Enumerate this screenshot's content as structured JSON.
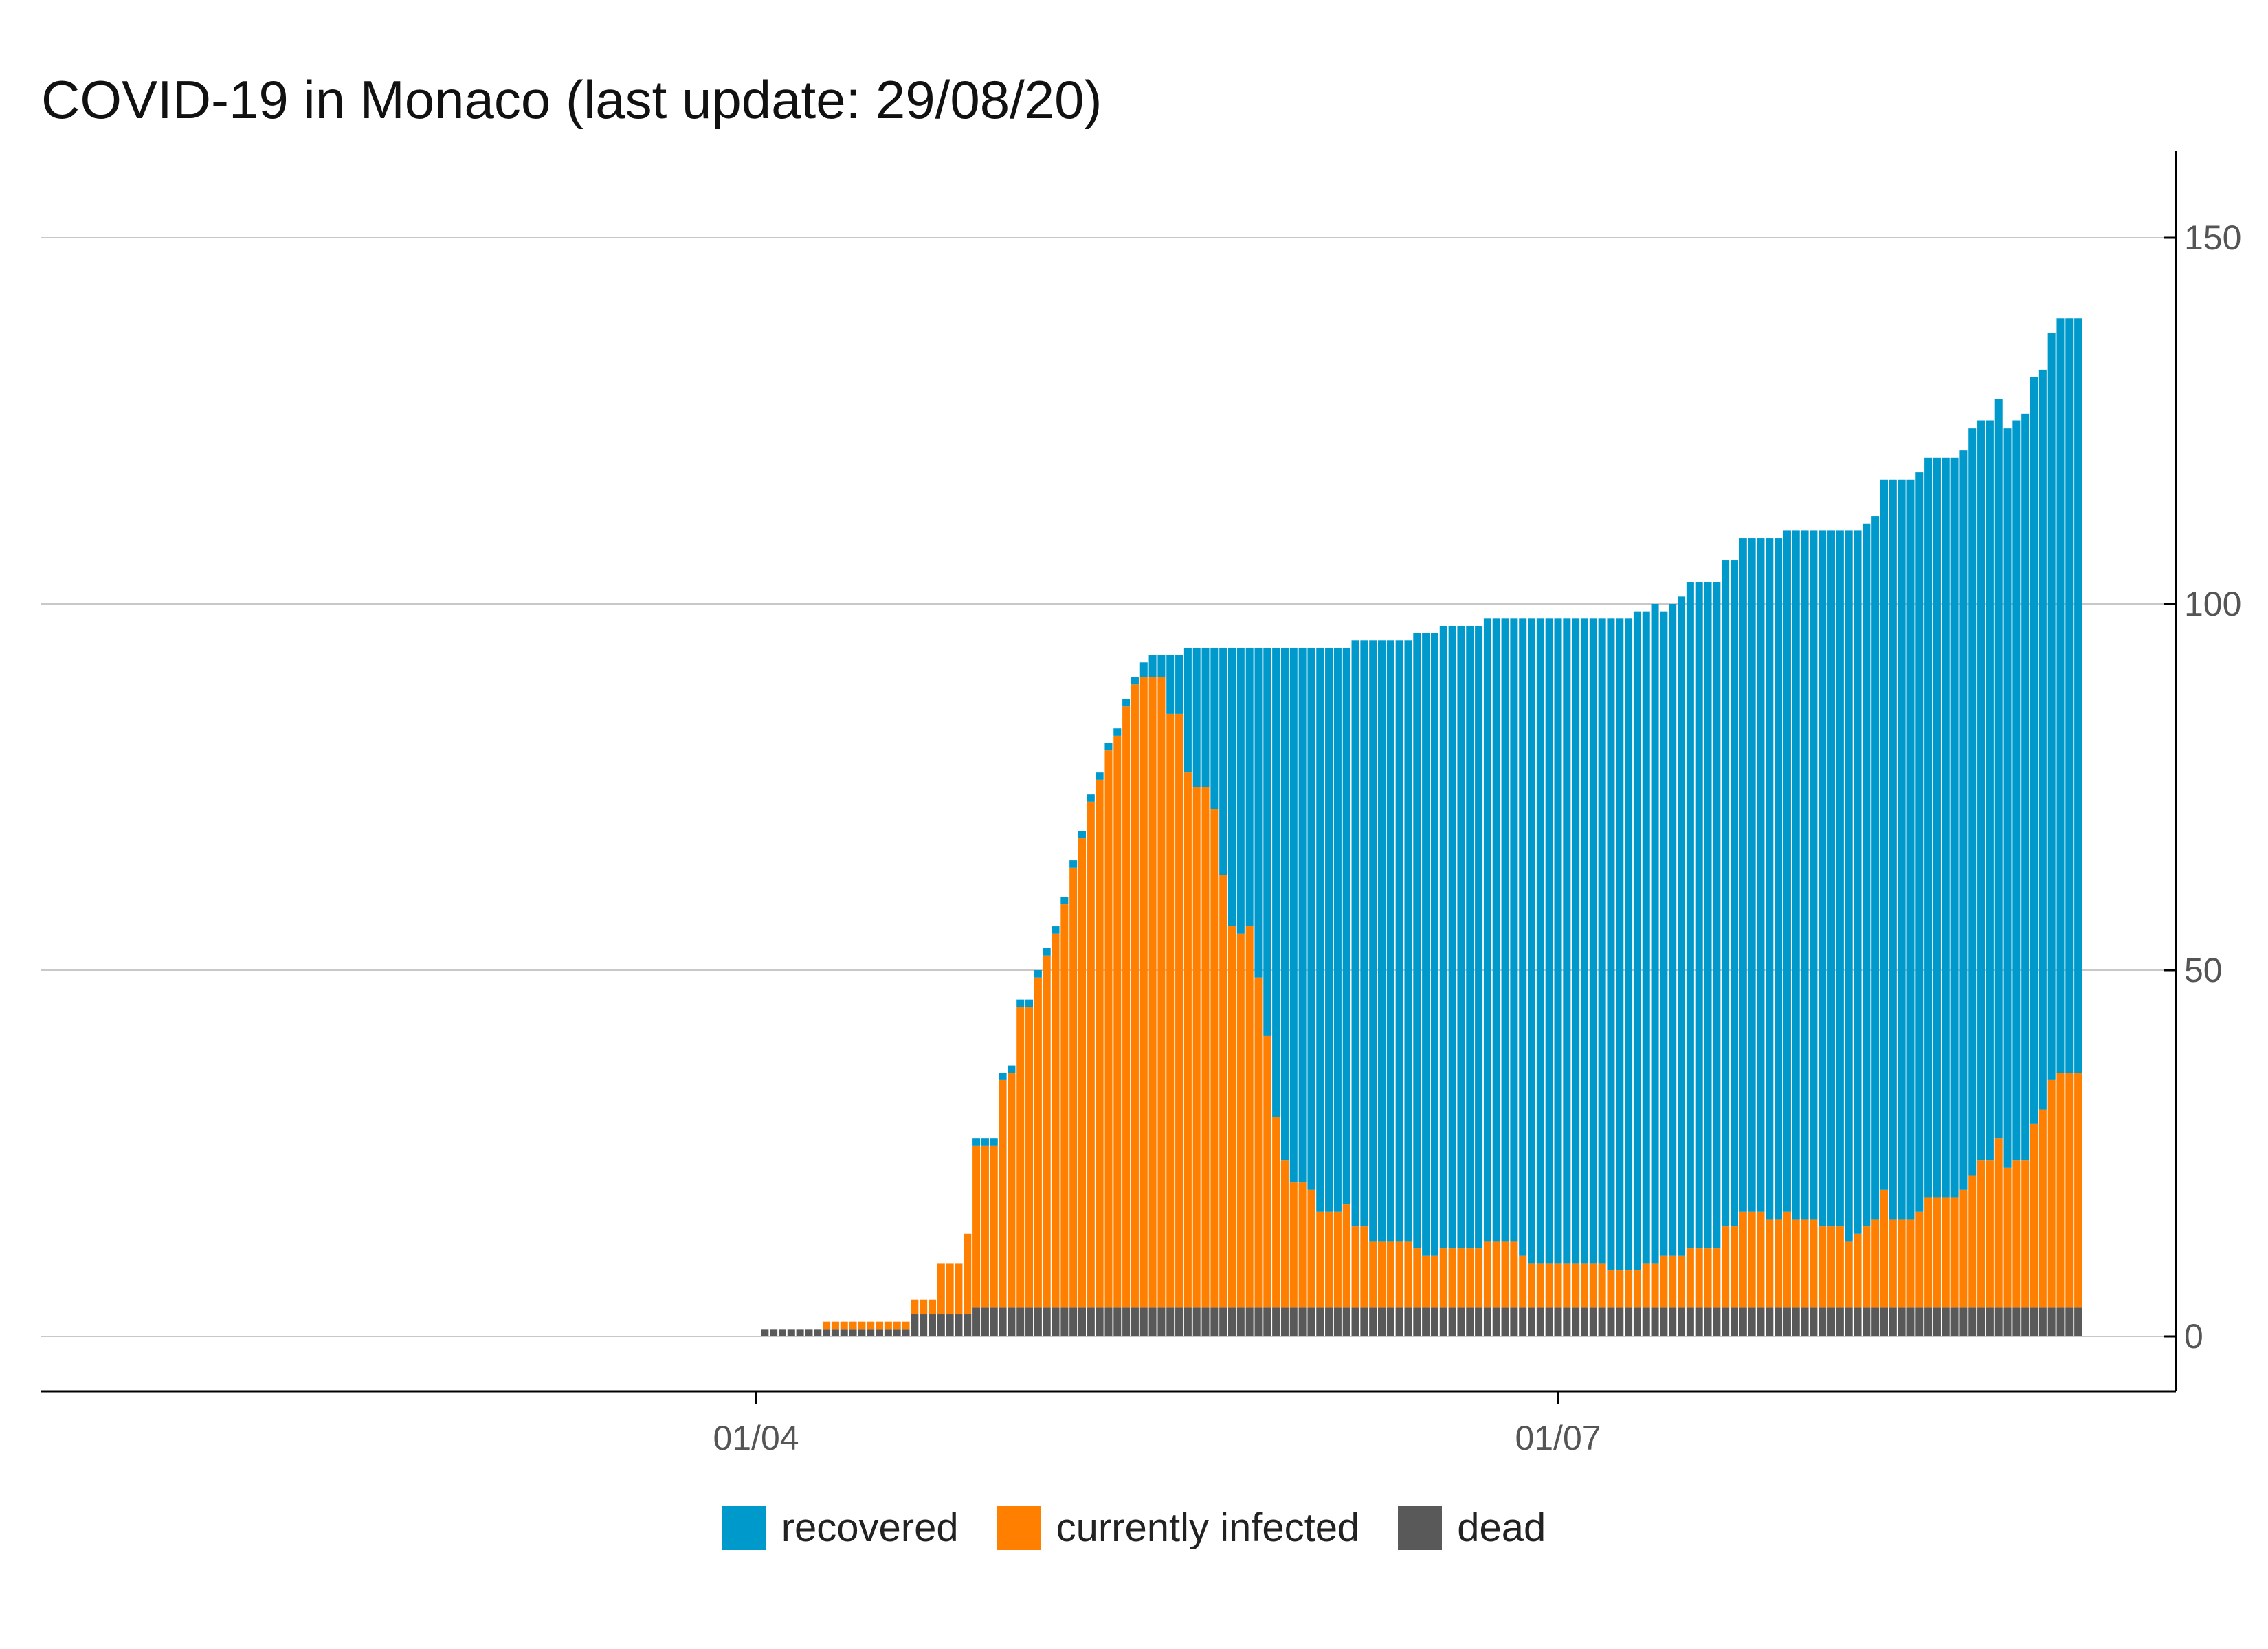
{
  "title": "COVID-19 in Monaco (last update: 29/08/20)",
  "chart_data": {
    "type": "bar",
    "stacked": true,
    "start_date": "2020-02-29",
    "end_date": "2020-08-29",
    "x_ticks": [
      {
        "date": "2020-04-01",
        "label": "01/04"
      },
      {
        "date": "2020-07-01",
        "label": "01/07"
      }
    ],
    "y_ticks": [
      0,
      50,
      100,
      150
    ],
    "ylim": [
      -8,
      162
    ],
    "y_axis_side": "right",
    "grid": "horizontal",
    "legend_position": "bottom",
    "series": [
      {
        "name": "dead",
        "color": "#595959",
        "values": [
          0,
          0,
          0,
          0,
          0,
          0,
          0,
          0,
          0,
          0,
          0,
          0,
          0,
          0,
          0,
          0,
          0,
          0,
          0,
          0,
          0,
          0,
          0,
          0,
          0,
          0,
          0,
          0,
          0,
          0,
          0,
          0,
          0,
          1,
          1,
          1,
          1,
          1,
          1,
          1,
          1,
          1,
          1,
          1,
          1,
          1,
          1,
          1,
          1,
          1,
          3,
          3,
          3,
          3,
          3,
          3,
          3,
          4,
          4,
          4,
          4,
          4,
          4,
          4,
          4,
          4,
          4,
          4,
          4,
          4,
          4,
          4,
          4,
          4,
          4,
          4,
          4,
          4,
          4,
          4,
          4,
          4,
          4,
          4,
          4,
          4,
          4,
          4,
          4,
          4,
          4,
          4,
          4,
          4,
          4,
          4,
          4,
          4,
          4,
          4,
          4,
          4,
          4,
          4,
          4,
          4,
          4,
          4,
          4,
          4,
          4,
          4,
          4,
          4,
          4,
          4,
          4,
          4,
          4,
          4,
          4,
          4,
          4,
          4,
          4,
          4,
          4,
          4,
          4,
          4,
          4,
          4,
          4,
          4,
          4,
          4,
          4,
          4,
          4,
          4,
          4,
          4,
          4,
          4,
          4,
          4,
          4,
          4,
          4,
          4,
          4,
          4,
          4,
          4,
          4,
          4,
          4,
          4,
          4,
          4,
          4,
          4,
          4,
          4,
          4,
          4,
          4,
          4,
          4,
          4,
          4,
          4,
          4,
          4,
          4,
          4,
          4,
          4,
          4,
          4,
          4,
          4,
          4,
          4
        ]
      },
      {
        "name": "currently infected",
        "color": "#ff8000",
        "values": [
          0,
          0,
          0,
          0,
          0,
          0,
          0,
          0,
          0,
          0,
          0,
          0,
          0,
          0,
          0,
          0,
          0,
          0,
          0,
          0,
          0,
          0,
          0,
          0,
          0,
          0,
          0,
          0,
          0,
          0,
          0,
          0,
          0,
          0,
          0,
          0,
          0,
          0,
          0,
          0,
          1,
          1,
          1,
          1,
          1,
          1,
          1,
          1,
          1,
          1,
          2,
          2,
          2,
          7,
          7,
          7,
          11,
          22,
          22,
          22,
          31,
          32,
          41,
          41,
          45,
          48,
          51,
          55,
          60,
          64,
          69,
          72,
          76,
          78,
          82,
          85,
          86,
          86,
          86,
          81,
          81,
          73,
          71,
          71,
          68,
          59,
          52,
          51,
          52,
          45,
          37,
          26,
          20,
          17,
          17,
          16,
          13,
          13,
          13,
          14,
          11,
          11,
          9,
          9,
          9,
          9,
          9,
          8,
          7,
          7,
          8,
          8,
          8,
          8,
          8,
          9,
          9,
          9,
          9,
          7,
          6,
          6,
          6,
          6,
          6,
          6,
          6,
          6,
          6,
          5,
          5,
          5,
          5,
          6,
          6,
          7,
          7,
          7,
          8,
          8,
          8,
          8,
          11,
          11,
          13,
          13,
          13,
          12,
          12,
          13,
          12,
          12,
          12,
          11,
          11,
          11,
          9,
          10,
          11,
          12,
          16,
          12,
          12,
          12,
          13,
          15,
          15,
          15,
          15,
          16,
          18,
          20,
          20,
          23,
          19,
          20,
          20,
          25,
          27,
          31,
          32,
          32,
          32,
          34,
          34,
          35,
          37,
          37,
          37,
          37,
          37,
          37,
          37,
          37
        ]
      },
      {
        "name": "recovered",
        "color": "#0099cc",
        "values": [
          0,
          0,
          0,
          0,
          0,
          0,
          0,
          0,
          0,
          0,
          0,
          0,
          0,
          0,
          0,
          0,
          0,
          0,
          0,
          0,
          0,
          0,
          0,
          0,
          0,
          0,
          0,
          0,
          0,
          0,
          0,
          0,
          0,
          0,
          0,
          0,
          0,
          0,
          0,
          0,
          0,
          0,
          0,
          0,
          0,
          0,
          0,
          0,
          0,
          0,
          0,
          0,
          0,
          0,
          0,
          0,
          0,
          1,
          1,
          1,
          1,
          1,
          1,
          1,
          1,
          1,
          1,
          1,
          1,
          1,
          1,
          1,
          1,
          1,
          1,
          1,
          2,
          3,
          3,
          8,
          8,
          17,
          19,
          19,
          22,
          31,
          38,
          39,
          38,
          45,
          53,
          64,
          70,
          73,
          73,
          74,
          77,
          77,
          77,
          76,
          80,
          80,
          82,
          82,
          82,
          82,
          82,
          84,
          85,
          85,
          85,
          85,
          85,
          85,
          85,
          85,
          85,
          85,
          85,
          87,
          88,
          88,
          88,
          88,
          88,
          88,
          88,
          88,
          88,
          89,
          89,
          89,
          90,
          89,
          90,
          88,
          89,
          90,
          91,
          91,
          91,
          91,
          91,
          91,
          92,
          92,
          92,
          93,
          93,
          93,
          94,
          94,
          94,
          95,
          95,
          95,
          97,
          96,
          96,
          96,
          97,
          101,
          101,
          101,
          101,
          101,
          101,
          101,
          101,
          101,
          102,
          101,
          101,
          101,
          101,
          101,
          102,
          102,
          101,
          102,
          103,
          103,
          103,
          103,
          103,
          103,
          113,
          113,
          113,
          113,
          113,
          113,
          113,
          113
        ]
      }
    ]
  }
}
